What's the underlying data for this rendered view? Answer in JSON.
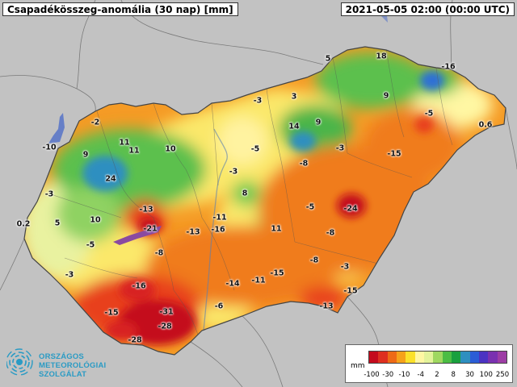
{
  "header": {
    "title": "Csapadékösszeg-anomália (30 nap) [mm]",
    "timestamp": "2021-05-05 02:00 (00:00 UTC)"
  },
  "map_labels": [
    {
      "text": "5"
    },
    {
      "text": "18"
    },
    {
      "text": "-16"
    },
    {
      "text": "9"
    },
    {
      "text": "-5"
    },
    {
      "text": "0.6"
    },
    {
      "text": "-3"
    },
    {
      "text": "3"
    },
    {
      "text": "-2"
    },
    {
      "text": "14"
    },
    {
      "text": "9"
    },
    {
      "text": "-10"
    },
    {
      "text": "11"
    },
    {
      "text": "11"
    },
    {
      "text": "10"
    },
    {
      "text": "9"
    },
    {
      "text": "-5"
    },
    {
      "text": "-3"
    },
    {
      "text": "-8"
    },
    {
      "text": "-15"
    },
    {
      "text": "24"
    },
    {
      "text": "-3"
    },
    {
      "text": "8"
    },
    {
      "text": "-3"
    },
    {
      "text": "-5"
    },
    {
      "text": "-24"
    },
    {
      "text": "-13"
    },
    {
      "text": "0.2"
    },
    {
      "text": "5"
    },
    {
      "text": "10"
    },
    {
      "text": "-11"
    },
    {
      "text": "-21"
    },
    {
      "text": "-13"
    },
    {
      "text": "-16"
    },
    {
      "text": "11"
    },
    {
      "text": "-8"
    },
    {
      "text": "-5"
    },
    {
      "text": "-8"
    },
    {
      "text": "-8"
    },
    {
      "text": "-3"
    },
    {
      "text": "-3"
    },
    {
      "text": "-15"
    },
    {
      "text": "-16"
    },
    {
      "text": "-14"
    },
    {
      "text": "-11"
    },
    {
      "text": "-15"
    },
    {
      "text": "-15"
    },
    {
      "text": "-6"
    },
    {
      "text": "-13"
    },
    {
      "text": "-31"
    },
    {
      "text": "-28"
    },
    {
      "text": "-28"
    }
  ],
  "legend": {
    "unit": "mm",
    "colors": [
      "#c40a1d",
      "#de2f20",
      "#ee6a16",
      "#f6a21a",
      "#fbe12a",
      "#fff7a3",
      "#e3f39a",
      "#9fd860",
      "#4bbd44",
      "#19a03e",
      "#2e8fc0",
      "#2b5dd6",
      "#4b33c2",
      "#7a31b0",
      "#9d3da5"
    ],
    "ticks": [
      "-100",
      "-30",
      "-10",
      "-4",
      "2",
      "8",
      "30",
      "100",
      "250"
    ]
  },
  "logo": {
    "line1": "ORSZÁGOS",
    "line2": "METEOROLÓGIAI",
    "line3": "SZOLGÁLAT"
  },
  "colors": {
    "background": "#bfbfbf",
    "deficit_strong": "#d8182a",
    "deficit": "#f2861c",
    "neutral": "#fbe86b",
    "surplus": "#36b24a",
    "surplus_strong": "#3a6fd8"
  }
}
